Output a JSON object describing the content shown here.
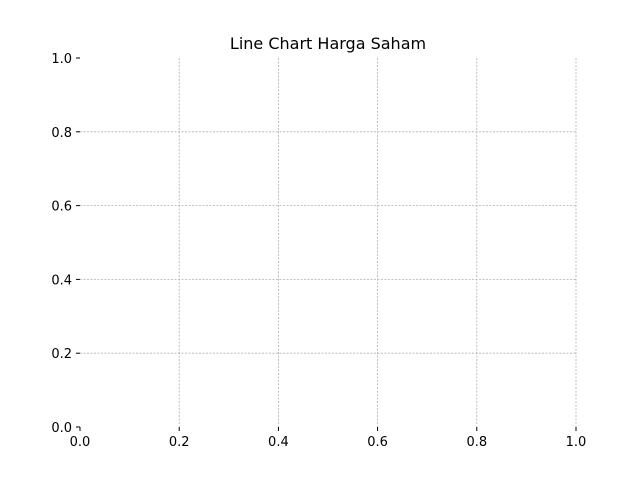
{
  "chart_data": {
    "type": "line",
    "title": "Line Chart Harga Saham",
    "xlabel": "",
    "ylabel": "",
    "xlim": [
      0.0,
      1.0
    ],
    "ylim": [
      0.0,
      1.0
    ],
    "x_ticks": [
      "0.0",
      "0.2",
      "0.4",
      "0.6",
      "0.8",
      "1.0"
    ],
    "y_ticks": [
      "0.0",
      "0.2",
      "0.4",
      "0.6",
      "0.8",
      "1.0"
    ],
    "series": [],
    "grid": true,
    "grid_style": "dashed",
    "grid_color": "#b0b0b0",
    "axis_spines": false,
    "legend": "none"
  }
}
